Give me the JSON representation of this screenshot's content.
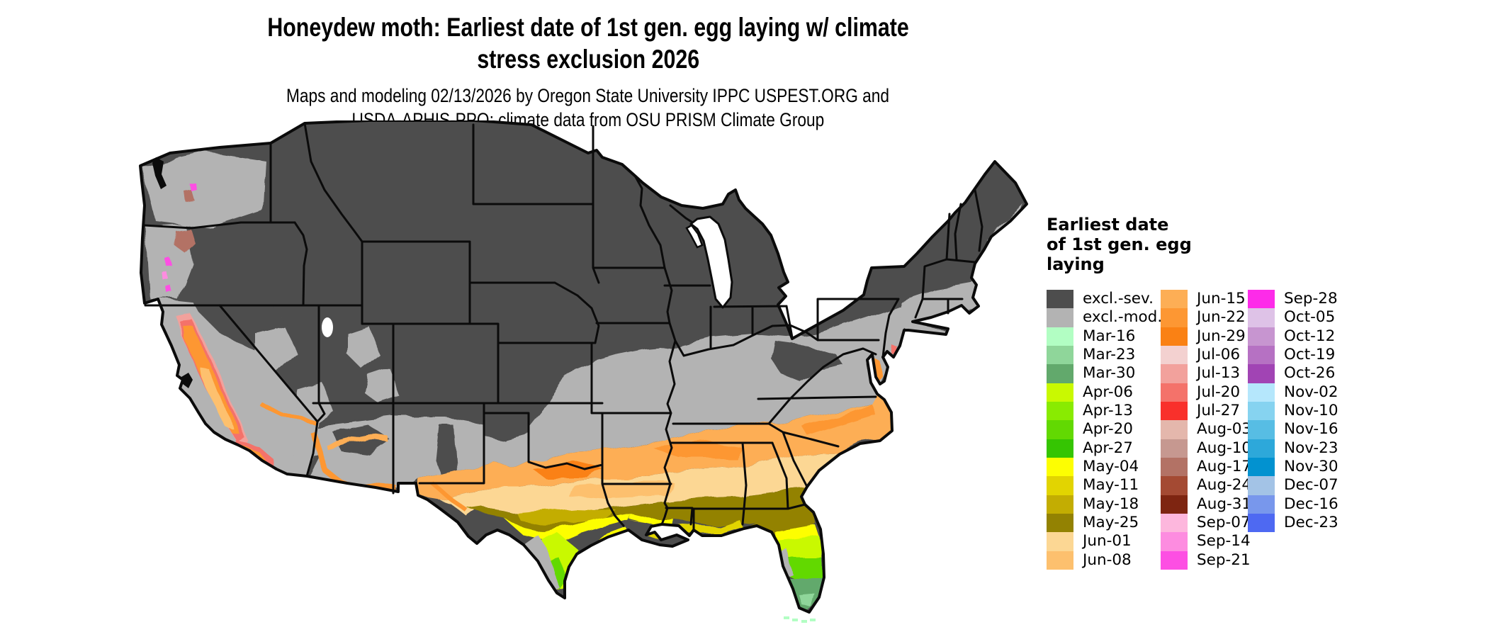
{
  "title": {
    "line1": "Honeydew moth: Earliest date of 1st gen. egg laying w/ climate",
    "line2": "stress exclusion 2026"
  },
  "subtitle": {
    "line1": "Maps and modeling 02/13/2026 by Oregon State University IPPC USPEST.ORG and",
    "line2": "USDA-APHIS-PPQ; climate data from OSU PRISM Climate Group"
  },
  "legend": {
    "title_lines": [
      "Earliest date",
      "of 1st gen. egg",
      "laying"
    ],
    "columns": [
      [
        {
          "label": "excl.-sev.",
          "color": "#4d4d4d"
        },
        {
          "label": "excl.-mod.",
          "color": "#b3b3b3"
        },
        {
          "label": "Mar-16",
          "color": "#b2fec3"
        },
        {
          "label": "Mar-23",
          "color": "#8fd69a"
        },
        {
          "label": "Mar-30",
          "color": "#62a96c"
        },
        {
          "label": "Apr-06",
          "color": "#c9f901"
        },
        {
          "label": "Apr-13",
          "color": "#89eb01"
        },
        {
          "label": "Apr-20",
          "color": "#62d902"
        },
        {
          "label": "Apr-27",
          "color": "#35c502"
        },
        {
          "label": "May-04",
          "color": "#fdfe02"
        },
        {
          "label": "May-11",
          "color": "#e2d401"
        },
        {
          "label": "May-18",
          "color": "#c3ad02"
        },
        {
          "label": "May-25",
          "color": "#938202"
        },
        {
          "label": "Jun-01",
          "color": "#fcd794"
        },
        {
          "label": "Jun-08",
          "color": "#fdc06e"
        }
      ],
      [
        {
          "label": "Jun-15",
          "color": "#fdae55"
        },
        {
          "label": "Jun-22",
          "color": "#fd9733"
        },
        {
          "label": "Jun-29",
          "color": "#fa8114"
        },
        {
          "label": "Jul-06",
          "color": "#f3d1d0"
        },
        {
          "label": "Jul-13",
          "color": "#f2a19c"
        },
        {
          "label": "Jul-20",
          "color": "#f4726a"
        },
        {
          "label": "Jul-27",
          "color": "#f9302b"
        },
        {
          "label": "Aug-03",
          "color": "#e4b7ac"
        },
        {
          "label": "Aug-10",
          "color": "#c69890"
        },
        {
          "label": "Aug-17",
          "color": "#b37265"
        },
        {
          "label": "Aug-24",
          "color": "#a44a33"
        },
        {
          "label": "Aug-31",
          "color": "#7e2511"
        },
        {
          "label": "Sep-07",
          "color": "#fdb7dd"
        },
        {
          "label": "Sep-14",
          "color": "#fd8ce0"
        },
        {
          "label": "Sep-21",
          "color": "#fd4fe3"
        }
      ],
      [
        {
          "label": "Sep-28",
          "color": "#fd2be9"
        },
        {
          "label": "Oct-05",
          "color": "#dec2e7"
        },
        {
          "label": "Oct-12",
          "color": "#c795d0"
        },
        {
          "label": "Oct-19",
          "color": "#b671c3"
        },
        {
          "label": "Oct-26",
          "color": "#a144b4"
        },
        {
          "label": "Nov-02",
          "color": "#b5e7fc"
        },
        {
          "label": "Nov-10",
          "color": "#86d3f0"
        },
        {
          "label": "Nov-16",
          "color": "#57bde4"
        },
        {
          "label": "Nov-23",
          "color": "#2da8da"
        },
        {
          "label": "Nov-30",
          "color": "#0292d0"
        },
        {
          "label": "Dec-07",
          "color": "#a3c3e6"
        },
        {
          "label": "Dec-16",
          "color": "#7897ec"
        },
        {
          "label": "Dec-23",
          "color": "#4e69f2"
        }
      ]
    ]
  },
  "map": {
    "colors": {
      "water": "#ffffff",
      "stroke": "#0b0b0b",
      "inlet": "#0b0b0b"
    }
  }
}
